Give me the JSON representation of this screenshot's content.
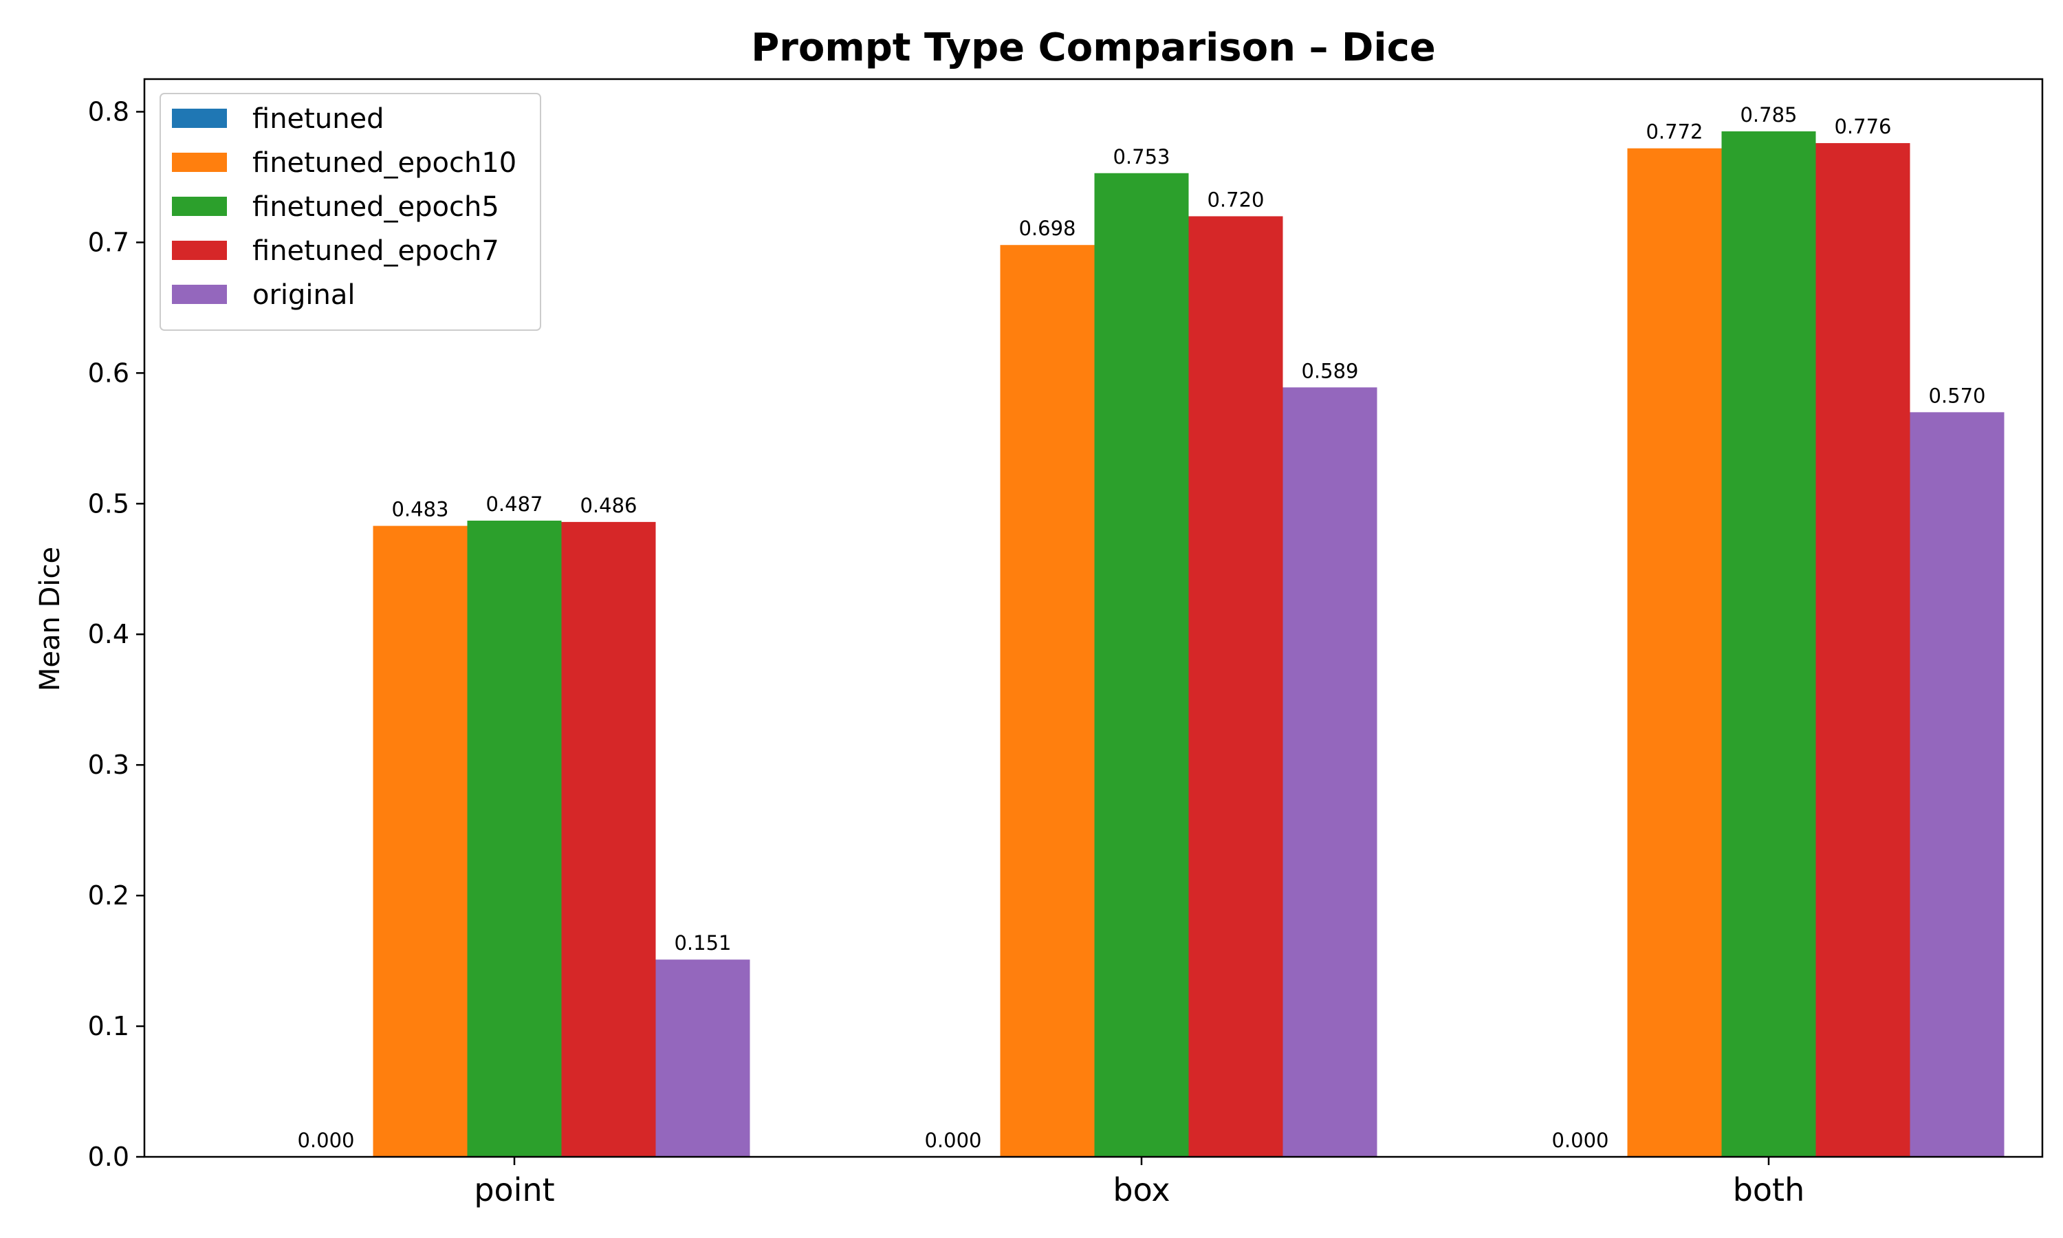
{
  "chart_data": {
    "type": "bar",
    "title": "Prompt Type Comparison – Dice",
    "xlabel": "",
    "ylabel": "Mean Dice",
    "categories": [
      "point",
      "box",
      "both"
    ],
    "ylim": [
      0,
      0.825
    ],
    "yticks": [
      0.0,
      0.1,
      0.2,
      0.3,
      0.4,
      0.5,
      0.6,
      0.7,
      0.8
    ],
    "ytick_labels": [
      "0.0",
      "0.1",
      "0.2",
      "0.3",
      "0.4",
      "0.5",
      "0.6",
      "0.7",
      "0.8"
    ],
    "grid": false,
    "legend_position": "top-left",
    "series": [
      {
        "name": "finetuned",
        "color": "#1f77b4",
        "values": [
          0.0,
          0.0,
          0.0
        ],
        "labels": [
          "0.000",
          "0.000",
          "0.000"
        ]
      },
      {
        "name": "finetuned_epoch10",
        "color": "#ff7f0e",
        "values": [
          0.483,
          0.698,
          0.772
        ],
        "labels": [
          "0.483",
          "0.698",
          "0.772"
        ]
      },
      {
        "name": "finetuned_epoch5",
        "color": "#2ca02c",
        "values": [
          0.487,
          0.753,
          0.785
        ],
        "labels": [
          "0.487",
          "0.753",
          "0.785"
        ]
      },
      {
        "name": "finetuned_epoch7",
        "color": "#d62728",
        "values": [
          0.486,
          0.72,
          0.776
        ],
        "labels": [
          "0.486",
          "0.720",
          "0.776"
        ]
      },
      {
        "name": "original",
        "color": "#9467bd",
        "values": [
          0.151,
          0.589,
          0.57
        ],
        "labels": [
          "0.151",
          "0.589",
          "0.570"
        ]
      }
    ]
  }
}
